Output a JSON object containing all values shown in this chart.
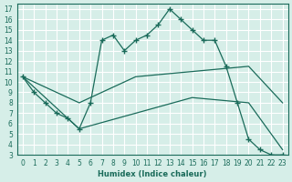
{
  "xlabel": "Humidex (Indice chaleur)",
  "background_color": "#d6eee8",
  "line_color": "#1a6b5a",
  "xlim": [
    -0.5,
    23.5
  ],
  "ylim": [
    3,
    17.5
  ],
  "yticks": [
    3,
    4,
    5,
    6,
    7,
    8,
    9,
    10,
    11,
    12,
    13,
    14,
    15,
    16,
    17
  ],
  "xticks": [
    0,
    1,
    2,
    3,
    4,
    5,
    6,
    7,
    8,
    9,
    10,
    11,
    12,
    13,
    14,
    15,
    16,
    17,
    18,
    19,
    20,
    21,
    22,
    23
  ],
  "lines": [
    {
      "x": [
        0,
        1,
        2,
        3,
        4,
        5,
        6,
        7,
        8,
        9,
        10,
        11,
        12,
        13,
        14,
        15,
        16,
        17,
        18,
        19,
        20,
        21,
        22,
        23
      ],
      "y": [
        10.5,
        9,
        8,
        7,
        6.5,
        5.5,
        8,
        14,
        14.5,
        13,
        14,
        14.5,
        15.5,
        17,
        16,
        15,
        14,
        14,
        11.5,
        8,
        4.5,
        3.5,
        3.0,
        3.0
      ],
      "marker": "+"
    },
    {
      "x": [
        0,
        5,
        10,
        15,
        20,
        23
      ],
      "y": [
        10.5,
        8,
        10.5,
        11,
        11.5,
        8
      ],
      "marker": ""
    },
    {
      "x": [
        0,
        5,
        10,
        15,
        20,
        23
      ],
      "y": [
        10.5,
        5.5,
        7,
        8.5,
        8,
        3.5
      ],
      "marker": ""
    }
  ]
}
